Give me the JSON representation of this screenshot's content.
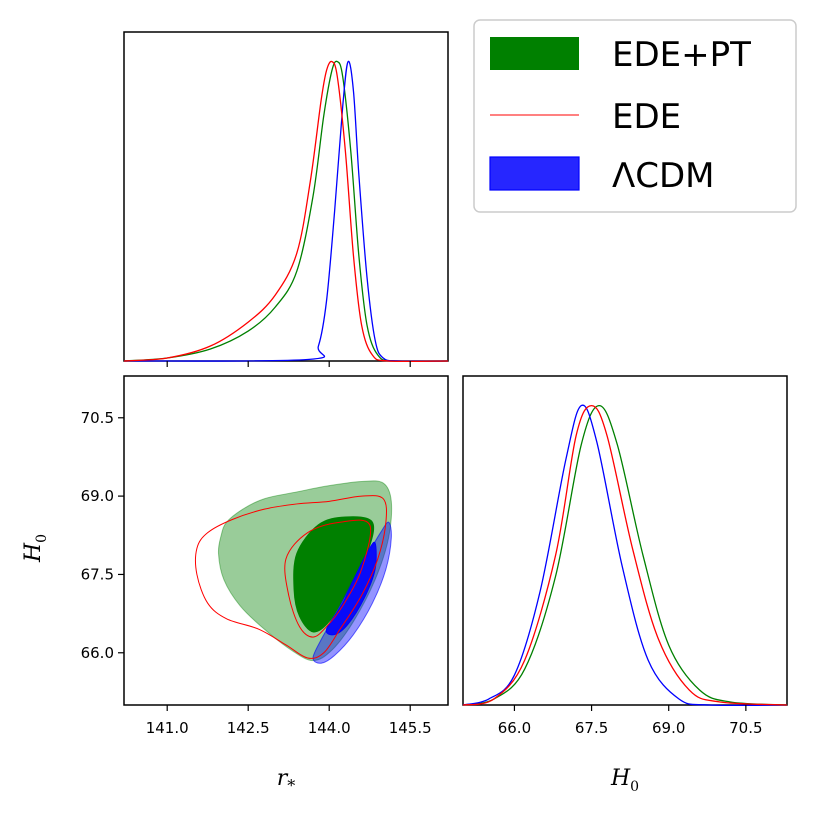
{
  "chart_data": {
    "type": "corner",
    "legend": {
      "placement": "top-right",
      "entries": [
        {
          "label": "EDE+PT",
          "color": "#008000",
          "style": "filled"
        },
        {
          "label": "EDE",
          "color": "#ff0000",
          "style": "line"
        },
        {
          "label": "ΛCDM",
          "color": "#0000ff",
          "style": "filled"
        }
      ]
    },
    "parameters": [
      {
        "name": "r_*",
        "label_main": "r",
        "label_sub": "*",
        "range": [
          140.2,
          146.2
        ],
        "ticks": [
          141.0,
          142.5,
          144.0,
          145.5
        ],
        "tick_labels": [
          "141.0",
          "142.5",
          "144.0",
          "145.5"
        ]
      },
      {
        "name": "H_0",
        "label_main": "H",
        "label_sub": "0",
        "range": [
          65.0,
          71.3
        ],
        "ticks": [
          66.0,
          67.5,
          69.0,
          70.5
        ],
        "tick_labels": [
          "66.0",
          "67.5",
          "69.0",
          "70.5"
        ]
      }
    ],
    "series": [
      {
        "name": "EDE+PT",
        "color": "#008000",
        "fill": true,
        "r_star_1d": [
          [
            140.2,
            0
          ],
          [
            141.0,
            0.01
          ],
          [
            141.8,
            0.04
          ],
          [
            142.5,
            0.1
          ],
          [
            143.0,
            0.18
          ],
          [
            143.4,
            0.3
          ],
          [
            143.7,
            0.55
          ],
          [
            143.9,
            0.82
          ],
          [
            144.05,
            0.97
          ],
          [
            144.15,
            1.0
          ],
          [
            144.25,
            0.95
          ],
          [
            144.4,
            0.7
          ],
          [
            144.55,
            0.35
          ],
          [
            144.7,
            0.12
          ],
          [
            144.9,
            0.02
          ],
          [
            145.2,
            0
          ],
          [
            146.2,
            0
          ]
        ],
        "H0_1d": [
          [
            65.0,
            0
          ],
          [
            65.6,
            0.02
          ],
          [
            66.2,
            0.12
          ],
          [
            66.8,
            0.43
          ],
          [
            67.3,
            0.87
          ],
          [
            67.65,
            1.0
          ],
          [
            68.0,
            0.87
          ],
          [
            68.5,
            0.5
          ],
          [
            69.0,
            0.2
          ],
          [
            69.6,
            0.05
          ],
          [
            70.2,
            0.01
          ],
          [
            71.3,
            0
          ]
        ],
        "contour_95": [
          [
            142.1,
            68.5
          ],
          [
            142.4,
            68.75
          ],
          [
            142.8,
            68.95
          ],
          [
            143.4,
            69.08
          ],
          [
            144.0,
            69.2
          ],
          [
            144.6,
            69.28
          ],
          [
            145.0,
            69.25
          ],
          [
            145.15,
            68.9
          ],
          [
            145.1,
            68.2
          ],
          [
            144.85,
            67.4
          ],
          [
            144.45,
            66.6
          ],
          [
            144.05,
            66.05
          ],
          [
            143.7,
            65.85
          ],
          [
            143.3,
            66.05
          ],
          [
            142.8,
            66.45
          ],
          [
            142.35,
            66.9
          ],
          [
            142.05,
            67.4
          ],
          [
            141.95,
            67.9
          ],
          [
            142.0,
            68.25
          ]
        ],
        "contour_68": [
          [
            143.4,
            67.9
          ],
          [
            143.8,
            68.45
          ],
          [
            144.3,
            68.6
          ],
          [
            144.8,
            68.5
          ],
          [
            144.7,
            67.9
          ],
          [
            144.35,
            67.2
          ],
          [
            144.0,
            66.6
          ],
          [
            143.7,
            66.4
          ],
          [
            143.45,
            66.7
          ],
          [
            143.35,
            67.2
          ]
        ]
      },
      {
        "name": "EDE",
        "color": "#ff0000",
        "fill": false,
        "r_star_1d": [
          [
            140.2,
            0
          ],
          [
            141.0,
            0.01
          ],
          [
            141.8,
            0.05
          ],
          [
            142.5,
            0.13
          ],
          [
            143.0,
            0.22
          ],
          [
            143.4,
            0.36
          ],
          [
            143.65,
            0.6
          ],
          [
            143.85,
            0.87
          ],
          [
            143.95,
            0.97
          ],
          [
            144.05,
            1.0
          ],
          [
            144.15,
            0.95
          ],
          [
            144.3,
            0.7
          ],
          [
            144.45,
            0.35
          ],
          [
            144.6,
            0.12
          ],
          [
            144.8,
            0.02
          ],
          [
            145.1,
            0
          ],
          [
            146.2,
            0
          ]
        ],
        "H0_1d": [
          [
            65.0,
            0
          ],
          [
            65.6,
            0.02
          ],
          [
            66.2,
            0.15
          ],
          [
            66.8,
            0.5
          ],
          [
            67.2,
            0.9
          ],
          [
            67.5,
            1.0
          ],
          [
            67.8,
            0.9
          ],
          [
            68.3,
            0.52
          ],
          [
            68.8,
            0.22
          ],
          [
            69.4,
            0.05
          ],
          [
            70.0,
            0.01
          ],
          [
            71.3,
            0
          ]
        ],
        "contour_95": [
          [
            141.75,
            68.3
          ],
          [
            142.2,
            68.55
          ],
          [
            142.8,
            68.75
          ],
          [
            143.4,
            68.85
          ],
          [
            144.0,
            68.9
          ],
          [
            144.6,
            69.0
          ],
          [
            145.0,
            68.95
          ],
          [
            145.05,
            68.5
          ],
          [
            144.9,
            67.8
          ],
          [
            144.6,
            67.1
          ],
          [
            144.2,
            66.45
          ],
          [
            143.9,
            66.0
          ],
          [
            143.6,
            65.9
          ],
          [
            143.2,
            66.15
          ],
          [
            142.7,
            66.45
          ],
          [
            142.1,
            66.65
          ],
          [
            141.75,
            66.95
          ],
          [
            141.55,
            67.5
          ],
          [
            141.55,
            68.0
          ]
        ],
        "contour_68": [
          [
            143.2,
            67.8
          ],
          [
            143.6,
            68.3
          ],
          [
            144.2,
            68.5
          ],
          [
            144.75,
            68.45
          ],
          [
            144.6,
            67.6
          ],
          [
            144.25,
            66.9
          ],
          [
            143.95,
            66.5
          ],
          [
            143.7,
            66.3
          ],
          [
            143.45,
            66.5
          ],
          [
            143.25,
            67.1
          ]
        ]
      },
      {
        "name": "ΛCDM",
        "color": "#0000ff",
        "fill": true,
        "r_star_1d": [
          [
            140.2,
            0
          ],
          [
            143.6,
            0.005
          ],
          [
            143.8,
            0.05
          ],
          [
            143.95,
            0.2
          ],
          [
            144.1,
            0.5
          ],
          [
            144.25,
            0.85
          ],
          [
            144.35,
            1.0
          ],
          [
            144.45,
            0.9
          ],
          [
            144.55,
            0.62
          ],
          [
            144.7,
            0.28
          ],
          [
            144.85,
            0.07
          ],
          [
            145.0,
            0.01
          ],
          [
            145.3,
            0
          ],
          [
            146.2,
            0
          ]
        ],
        "H0_1d": [
          [
            65.0,
            0
          ],
          [
            65.5,
            0.02
          ],
          [
            66.0,
            0.1
          ],
          [
            66.5,
            0.38
          ],
          [
            67.0,
            0.82
          ],
          [
            67.3,
            1.0
          ],
          [
            67.6,
            0.88
          ],
          [
            68.1,
            0.46
          ],
          [
            68.6,
            0.15
          ],
          [
            69.2,
            0.02
          ],
          [
            69.8,
            0
          ],
          [
            71.3,
            0
          ]
        ],
        "contour_95": [
          [
            143.7,
            65.9
          ],
          [
            143.85,
            66.25
          ],
          [
            144.15,
            66.8
          ],
          [
            144.45,
            67.4
          ],
          [
            144.75,
            67.95
          ],
          [
            144.95,
            68.3
          ],
          [
            145.1,
            68.5
          ],
          [
            145.15,
            68.2
          ],
          [
            145.05,
            67.6
          ],
          [
            144.8,
            66.95
          ],
          [
            144.45,
            66.35
          ],
          [
            144.1,
            65.95
          ],
          [
            143.85,
            65.8
          ]
        ],
        "contour_68": [
          [
            143.95,
            66.45
          ],
          [
            144.25,
            66.95
          ],
          [
            144.5,
            67.5
          ],
          [
            144.72,
            67.95
          ],
          [
            144.85,
            68.1
          ],
          [
            144.85,
            67.6
          ],
          [
            144.65,
            67.05
          ],
          [
            144.35,
            66.55
          ],
          [
            144.1,
            66.35
          ]
        ]
      }
    ]
  }
}
